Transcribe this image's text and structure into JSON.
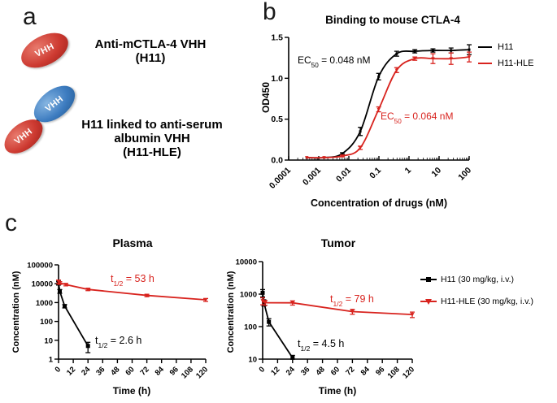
{
  "figure": {
    "background": "#ffffff"
  },
  "panel_letters": {
    "a": "a",
    "b": "b",
    "c": "c"
  },
  "colors": {
    "red": "#d8231e",
    "black": "#000000",
    "oval_red": "#cd3a31",
    "oval_blue": "#3d7cc0"
  },
  "panel_a": {
    "molecules": [
      {
        "name": "H11",
        "domains": [
          "VHH"
        ],
        "label_lines": [
          "Anti-mCTLA-4 VHH",
          "(H11)"
        ]
      },
      {
        "name": "H11-HLE",
        "domains": [
          "VHH",
          "VHH"
        ],
        "label_lines": [
          "H11 linked to anti-serum",
          "albumin VHH",
          "(H11-HLE)"
        ]
      }
    ]
  },
  "chart_data": [
    {
      "id": "binding",
      "type": "line",
      "title": "Binding to mouse CTLA-4",
      "xlabel": "Concentration of drugs (nM)",
      "ylabel": "OD450",
      "xscale": "log",
      "yscale": "linear",
      "xlim": [
        0.0001,
        100
      ],
      "ylim": [
        0,
        1.5
      ],
      "xticks": [
        0.0001,
        0.001,
        0.01,
        0.1,
        1,
        10,
        100
      ],
      "xtick_labels": [
        "0.0001",
        "0.001",
        "0.01",
        "0.1",
        "1",
        "10",
        "100"
      ],
      "yticks": [
        0,
        0.5,
        1.0,
        1.5
      ],
      "ytick_labels": [
        "0.0",
        "0.5",
        "1.0",
        "1.5"
      ],
      "x_minor_log": true,
      "xticks_inside": true,
      "smooth": true,
      "grid": false,
      "legend_position": "right",
      "series": [
        {
          "name": "H11",
          "color": "#000000",
          "marker": "square",
          "marker_size": 3,
          "x": [
            0.0004,
            0.0015,
            0.0061,
            0.024,
            0.098,
            0.39,
            1.56,
            6.25,
            25,
            100
          ],
          "y": [
            0.03,
            0.03,
            0.08,
            0.35,
            1.02,
            1.3,
            1.33,
            1.34,
            1.34,
            1.35
          ],
          "err": [
            0,
            0,
            0.01,
            0.05,
            0.04,
            0.03,
            0.02,
            0.02,
            0.03,
            0.06
          ]
        },
        {
          "name": "H11-HLE",
          "color": "#d8231e",
          "marker": "triangle-down",
          "marker_size": 4.5,
          "x": [
            0.0004,
            0.0015,
            0.0061,
            0.024,
            0.098,
            0.39,
            1.56,
            6.25,
            25,
            100
          ],
          "y": [
            0.03,
            0.03,
            0.05,
            0.15,
            0.62,
            1.1,
            1.24,
            1.24,
            1.24,
            1.26
          ],
          "err": [
            0,
            0,
            0.01,
            0.02,
            0.03,
            0.03,
            0.02,
            0.06,
            0.07,
            0.06
          ]
        }
      ],
      "annotations": [
        {
          "text": "EC50 = 0.048 nM",
          "pre": "EC",
          "sub": "50",
          "post": " = 0.048 nM",
          "color": "#000000",
          "series": "H11"
        },
        {
          "text": "EC50 = 0.064 nM",
          "pre": "EC",
          "sub": "50",
          "post": " = 0.064 nM",
          "color": "#d8231e",
          "series": "H11-HLE"
        }
      ]
    },
    {
      "id": "plasma",
      "type": "line",
      "title": "Plasma",
      "xlabel": "Time (h)",
      "ylabel": "Concentration (nM)",
      "xscale": "linear",
      "yscale": "log",
      "xlim": [
        0,
        120
      ],
      "ylim": [
        1,
        100000
      ],
      "xticks": [
        0,
        12,
        24,
        36,
        48,
        60,
        72,
        84,
        96,
        108,
        120
      ],
      "xtick_labels": [
        "0",
        "12",
        "24",
        "36",
        "48",
        "60",
        "72",
        "84",
        "96",
        "108",
        "120"
      ],
      "yticks": [
        1,
        10,
        100,
        1000,
        10000,
        100000
      ],
      "ytick_labels": [
        "1",
        "10",
        "100",
        "1000",
        "10000",
        "100000"
      ],
      "x_minor_log": false,
      "xticks_inside": false,
      "smooth": false,
      "grid": false,
      "series": [
        {
          "name": "H11 (30 mg/kg, i.v.)",
          "color": "#000000",
          "marker": "square",
          "marker_size": 5,
          "x": [
            0,
            1,
            5,
            24
          ],
          "y": [
            11000,
            4000,
            650,
            5
          ],
          "err": [
            2500,
            900,
            130,
            2.8
          ]
        },
        {
          "name": "H11-HLE (30 mg/kg, i.v.)",
          "color": "#d8231e",
          "marker": "triangle-down",
          "marker_size": 5,
          "x": [
            0,
            1,
            6,
            24,
            72,
            120
          ],
          "y": [
            13000,
            11000,
            9000,
            5000,
            2400,
            1400
          ],
          "err": [
            2600,
            1800,
            1300,
            700,
            350,
            250
          ]
        }
      ],
      "annotations": [
        {
          "text": "t1/2 = 53 h",
          "pre": "t",
          "sub": "1/2",
          "post": " = 53 h",
          "color": "#d8231e",
          "series": "H11-HLE (30 mg/kg, i.v.)"
        },
        {
          "text": "t1/2 = 2.6 h",
          "pre": "t",
          "sub": "1/2",
          "post": " = 2.6 h",
          "color": "#000000",
          "series": "H11 (30 mg/kg, i.v.)"
        }
      ]
    },
    {
      "id": "tumor",
      "type": "line",
      "title": "Tumor",
      "xlabel": "Time (h)",
      "ylabel": "Concentration (nM)",
      "xscale": "linear",
      "yscale": "log",
      "xlim": [
        0,
        120
      ],
      "ylim": [
        10,
        10000
      ],
      "xticks": [
        0,
        12,
        24,
        36,
        48,
        60,
        72,
        84,
        96,
        108,
        120
      ],
      "xtick_labels": [
        "0",
        "12",
        "24",
        "36",
        "48",
        "60",
        "72",
        "84",
        "96",
        "108",
        "120"
      ],
      "yticks": [
        10,
        100,
        1000,
        10000
      ],
      "ytick_labels": [
        "10",
        "100",
        "1000",
        "10000"
      ],
      "x_minor_log": false,
      "xticks_inside": false,
      "smooth": false,
      "grid": false,
      "series": [
        {
          "name": "H11 (30 mg/kg, i.v.)",
          "color": "#000000",
          "marker": "square",
          "marker_size": 5,
          "x": [
            0,
            1,
            5,
            24
          ],
          "y": [
            1100,
            550,
            140,
            11
          ],
          "err": [
            280,
            120,
            35,
            2
          ]
        },
        {
          "name": "H11-HLE (30 mg/kg, i.v.)",
          "color": "#d8231e",
          "marker": "triangle-down",
          "marker_size": 5,
          "x": [
            0,
            2,
            24,
            72,
            120
          ],
          "y": [
            620,
            545,
            540,
            290,
            235
          ],
          "err": [
            150,
            90,
            80,
            50,
            45
          ]
        }
      ],
      "annotations": [
        {
          "text": "t1/2 = 79 h",
          "pre": "t",
          "sub": "1/2",
          "post": " = 79 h",
          "color": "#d8231e",
          "series": "H11-HLE (30 mg/kg, i.v.)"
        },
        {
          "text": "t1/2 = 4.5 h",
          "pre": "t",
          "sub": "1/2",
          "post": " = 4.5 h",
          "color": "#000000",
          "series": "H11 (30 mg/kg, i.v.)"
        }
      ]
    }
  ]
}
